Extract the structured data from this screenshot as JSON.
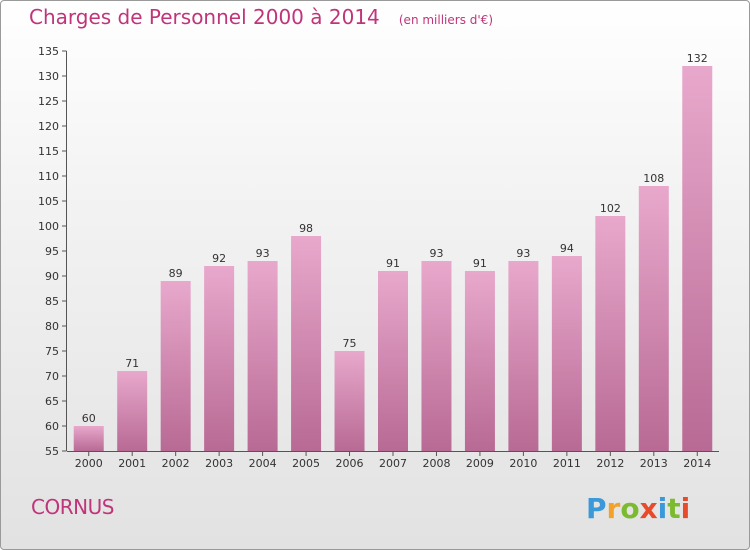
{
  "header": {
    "title": "Charges de Personnel 2000 à 2014",
    "subtitle": "(en milliers d'€)"
  },
  "footer": {
    "commune": "CORNUS",
    "logo_text": "Proxiti"
  },
  "colors": {
    "title": "#c0357a",
    "bar_light": "#e8a8cc",
    "bar_dark": "#b86a94",
    "logo_p": "#3a9ad9",
    "logo_r": "#f2a22a",
    "logo_o": "#7cbb2f",
    "logo_x": "#e84a2a",
    "logo_i": "#3a9ad9",
    "logo_t": "#7cbb2f",
    "logo_i2": "#e84a2a"
  },
  "chart_data": {
    "type": "bar",
    "title": "Charges de Personnel 2000 à 2014",
    "subtitle": "(en milliers d'€)",
    "categories": [
      "2000",
      "2001",
      "2002",
      "2003",
      "2004",
      "2005",
      "2006",
      "2007",
      "2008",
      "2009",
      "2010",
      "2011",
      "2012",
      "2013",
      "2014"
    ],
    "values": [
      60,
      71,
      89,
      92,
      93,
      98,
      75,
      91,
      93,
      91,
      93,
      94,
      102,
      108,
      132
    ],
    "ylim": [
      55,
      135
    ],
    "yticks": [
      55,
      60,
      65,
      70,
      75,
      80,
      85,
      90,
      95,
      100,
      105,
      110,
      115,
      120,
      125,
      130,
      135
    ],
    "xlabel": "",
    "ylabel": "",
    "grid": false,
    "data_labels": true
  }
}
